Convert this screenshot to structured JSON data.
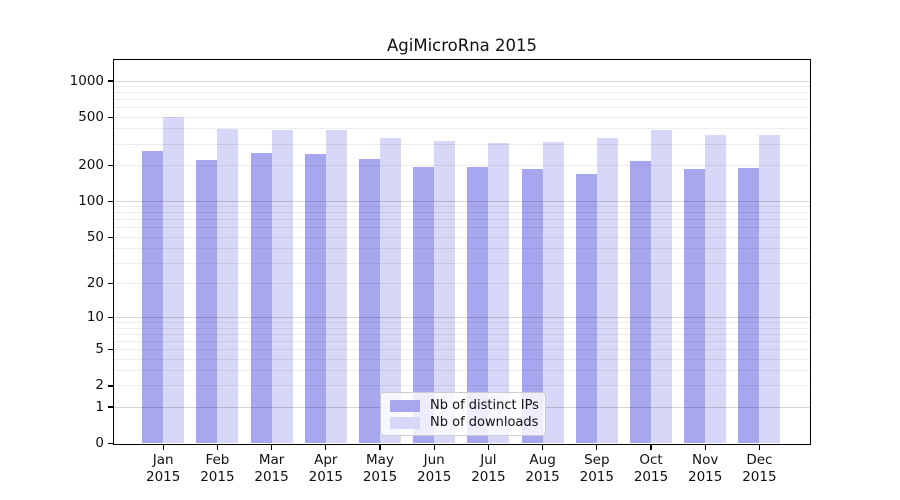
{
  "chart_data": {
    "type": "bar",
    "title": "AgiMicroRna 2015",
    "categories": [
      "Jan",
      "Feb",
      "Mar",
      "Apr",
      "May",
      "Jun",
      "Jul",
      "Aug",
      "Sep",
      "Oct",
      "Nov",
      "Dec"
    ],
    "year_label": "2015",
    "series": [
      {
        "name": "Nb of distinct IPs",
        "color": "#a7a7f0",
        "values": [
          265,
          220,
          255,
          250,
          225,
          195,
          192,
          185,
          168,
          215,
          185,
          190
        ]
      },
      {
        "name": "Nb of downloads",
        "color": "#d7d7f7",
        "values": [
          500,
          400,
          390,
          395,
          340,
          315,
          305,
          310,
          335,
          390,
          360,
          360
        ]
      }
    ],
    "y_ticks": [
      0,
      1,
      2,
      5,
      10,
      20,
      50,
      100,
      200,
      500,
      1000
    ],
    "y_scale": "log10(1+v)",
    "ylim": [
      0,
      1500
    ],
    "xlabel": "",
    "ylabel": "",
    "grid": true,
    "legend_position": "lower-center-inside",
    "colors": {
      "background": "#ffffff",
      "axis": "#000000",
      "grid_major": "#d6d6d6",
      "grid_minor": "#ededed",
      "text": "#111111",
      "legend_border": "#cccccc"
    }
  }
}
